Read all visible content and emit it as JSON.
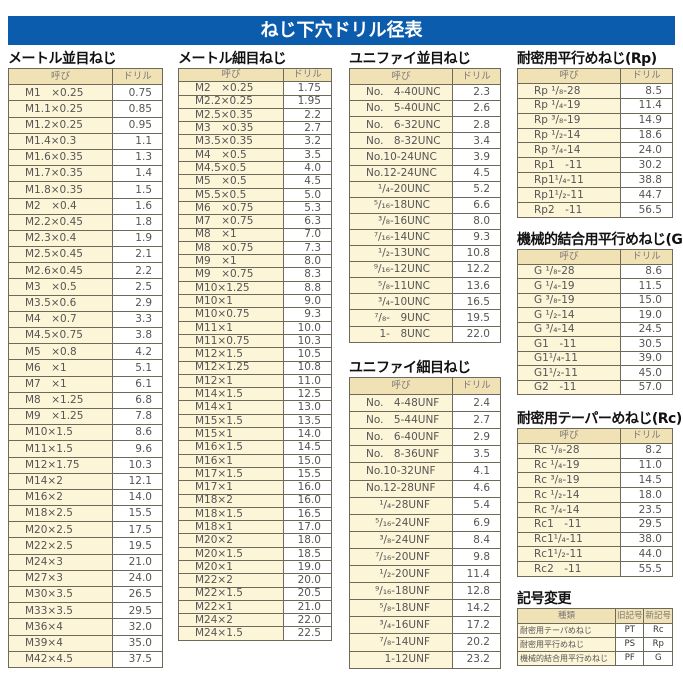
{
  "title": "ねじ下穴ドリル径表",
  "col_name": "呼び",
  "col_drill": "ドリル",
  "sections": [
    {
      "id": "metric-coarse",
      "heading": "メートル並目ねじ",
      "rows": [
        [
          "M1　×0.25",
          "0.75"
        ],
        [
          "M1.1×0.25",
          "0.85"
        ],
        [
          "M1.2×0.25",
          "0.95"
        ],
        [
          "M1.4×0.3",
          "1.1"
        ],
        [
          "M1.6×0.35",
          "1.3"
        ],
        [
          "M1.7×0.35",
          "1.4"
        ],
        [
          "M1.8×0.35",
          "1.5"
        ],
        [
          "M2　×0.4",
          "1.6"
        ],
        [
          "M2.2×0.45",
          "1.8"
        ],
        [
          "M2.3×0.4",
          "1.9"
        ],
        [
          "M2.5×0.45",
          "2.1"
        ],
        [
          "M2.6×0.45",
          "2.2"
        ],
        [
          "M3　×0.5",
          "2.5"
        ],
        [
          "M3.5×0.6",
          "2.9"
        ],
        [
          "M4　×0.7",
          "3.3"
        ],
        [
          "M4.5×0.75",
          "3.8"
        ],
        [
          "M5　×0.8",
          "4.2"
        ],
        [
          "M6　×1",
          "5.1"
        ],
        [
          "M7　×1",
          "6.1"
        ],
        [
          "M8　×1.25",
          "6.8"
        ],
        [
          "M9　×1.25",
          "7.8"
        ],
        [
          "M10×1.5",
          "8.6"
        ],
        [
          "M11×1.5",
          "9.6"
        ],
        [
          "M12×1.75",
          "10.3"
        ],
        [
          "M14×2",
          "12.1"
        ],
        [
          "M16×2",
          "14.0"
        ],
        [
          "M18×2.5",
          "15.5"
        ],
        [
          "M20×2.5",
          "17.5"
        ],
        [
          "M22×2.5",
          "19.5"
        ],
        [
          "M24×3",
          "21.0"
        ],
        [
          "M27×3",
          "24.0"
        ],
        [
          "M30×3.5",
          "26.5"
        ],
        [
          "M33×3.5",
          "29.5"
        ],
        [
          "M36×4",
          "32.0"
        ],
        [
          "M39×4",
          "35.0"
        ],
        [
          "M42×4.5",
          "37.5"
        ]
      ]
    },
    {
      "id": "metric-fine",
      "heading": "メートル細目ねじ",
      "rows": [
        [
          "M2　×0.25",
          "1.75"
        ],
        [
          "M2.2×0.25",
          "1.95"
        ],
        [
          "M2.5×0.35",
          "2.2"
        ],
        [
          "M3　×0.35",
          "2.7"
        ],
        [
          "M3.5×0.35",
          "3.2"
        ],
        [
          "M4　×0.5",
          "3.5"
        ],
        [
          "M4.5×0.5",
          "4.0"
        ],
        [
          "M5　×0.5",
          "4.5"
        ],
        [
          "M5.5×0.5",
          "5.0"
        ],
        [
          "M6　×0.75",
          "5.3"
        ],
        [
          "M7　×0.75",
          "6.3"
        ],
        [
          "M8　×1",
          "7.0"
        ],
        [
          "M8　×0.75",
          "7.3"
        ],
        [
          "M9　×1",
          "8.0"
        ],
        [
          "M9　×0.75",
          "8.3"
        ],
        [
          "M10×1.25",
          "8.8"
        ],
        [
          "M10×1",
          "9.0"
        ],
        [
          "M10×0.75",
          "9.3"
        ],
        [
          "M11×1",
          "10.0"
        ],
        [
          "M11×0.75",
          "10.3"
        ],
        [
          "M12×1.5",
          "10.5"
        ],
        [
          "M12×1.25",
          "10.8"
        ],
        [
          "M12×1",
          "11.0"
        ],
        [
          "M14×1.5",
          "12.5"
        ],
        [
          "M14×1",
          "13.0"
        ],
        [
          "M15×1.5",
          "13.5"
        ],
        [
          "M15×1",
          "14.0"
        ],
        [
          "M16×1.5",
          "14.5"
        ],
        [
          "M16×1",
          "15.0"
        ],
        [
          "M17×1.5",
          "15.5"
        ],
        [
          "M17×1",
          "16.0"
        ],
        [
          "M18×2",
          "16.0"
        ],
        [
          "M18×1.5",
          "16.5"
        ],
        [
          "M18×1",
          "17.0"
        ],
        [
          "M20×2",
          "18.0"
        ],
        [
          "M20×1.5",
          "18.5"
        ],
        [
          "M20×1",
          "19.0"
        ],
        [
          "M22×2",
          "20.0"
        ],
        [
          "M22×1.5",
          "20.5"
        ],
        [
          "M22×1",
          "21.0"
        ],
        [
          "M24×2",
          "22.0"
        ],
        [
          "M24×1.5",
          "22.5"
        ]
      ]
    },
    {
      "id": "unc",
      "heading": "ユニファイ並目ねじ",
      "rows": [
        [
          "No.　4-40UNC",
          "2.3"
        ],
        [
          "No.　5-40UNC",
          "2.6"
        ],
        [
          "No.　6-32UNC",
          "2.8"
        ],
        [
          "No.　8-32UNC",
          "3.4"
        ],
        [
          "No.10-24UNC",
          "3.9"
        ],
        [
          "No.12-24UNC",
          "4.5"
        ],
        [
          "¹/₄-20UNC",
          "5.2"
        ],
        [
          "⁵/₁₆-18UNC",
          "6.6"
        ],
        [
          "³/₈-16UNC",
          "8.0"
        ],
        [
          "⁷/₁₆-14UNC",
          "9.3"
        ],
        [
          "¹/₂-13UNC",
          "10.8"
        ],
        [
          "⁹/₁₆-12UNC",
          "12.2"
        ],
        [
          "⁵/₈-11UNC",
          "13.6"
        ],
        [
          "³/₄-10UNC",
          "16.5"
        ],
        [
          "⁷/₈-　9UNC",
          "19.5"
        ],
        [
          "1-　8UNC",
          "22.0"
        ]
      ]
    },
    {
      "id": "unf",
      "heading": "ユニファイ細目ねじ",
      "rows": [
        [
          "No.　4-48UNF",
          "2.4"
        ],
        [
          "No.　5-44UNF",
          "2.7"
        ],
        [
          "No.　6-40UNF",
          "2.9"
        ],
        [
          "No.　8-36UNF",
          "3.5"
        ],
        [
          "No.10-32UNF",
          "4.1"
        ],
        [
          "No.12-28UNF",
          "4.6"
        ],
        [
          "¹/₄-28UNF",
          "5.4"
        ],
        [
          "⁵/₁₆-24UNF",
          "6.9"
        ],
        [
          "³/₈-24UNF",
          "8.4"
        ],
        [
          "⁷/₁₆-20UNF",
          "9.8"
        ],
        [
          "¹/₂-20UNF",
          "11.4"
        ],
        [
          "⁹/₁₆-18UNF",
          "12.8"
        ],
        [
          "⁵/₈-18UNF",
          "14.2"
        ],
        [
          "³/₄-16UNF",
          "17.2"
        ],
        [
          "⁷/₈-14UNF",
          "20.2"
        ],
        [
          "1-12UNF",
          "23.2"
        ]
      ]
    },
    {
      "id": "rp",
      "heading": "耐密用平行めねじ(Rp)",
      "rows": [
        [
          "Rp ¹/₈-28",
          "8.5"
        ],
        [
          "Rp ¹/₄-19",
          "11.4"
        ],
        [
          "Rp ³/₈-19",
          "14.9"
        ],
        [
          "Rp ¹/₂-14",
          "18.6"
        ],
        [
          "Rp ³/₄-14",
          "24.0"
        ],
        [
          "Rp1　-11",
          "30.2"
        ],
        [
          "Rp1¹/₄-11",
          "38.8"
        ],
        [
          "Rp1¹/₂-11",
          "44.7"
        ],
        [
          "Rp2　-11",
          "56.5"
        ]
      ]
    },
    {
      "id": "g",
      "heading": "機械的結合用平行めねじ(G)",
      "rows": [
        [
          "G ¹/₈-28",
          "8.6"
        ],
        [
          "G ¹/₄-19",
          "11.5"
        ],
        [
          "G ³/₈-19",
          "15.0"
        ],
        [
          "G ¹/₂-14",
          "19.0"
        ],
        [
          "G ³/₄-14",
          "24.5"
        ],
        [
          "G1　-11",
          "30.5"
        ],
        [
          "G1¹/₄-11",
          "39.0"
        ],
        [
          "G1¹/₂-11",
          "45.0"
        ],
        [
          "G2　-11",
          "57.0"
        ]
      ]
    },
    {
      "id": "rc",
      "heading": "耐密用テーパーめねじ(Rc)",
      "rows": [
        [
          "Rc ¹/₈-28",
          "8.2"
        ],
        [
          "Rc ¹/₄-19",
          "11.0"
        ],
        [
          "Rc ³/₈-19",
          "14.5"
        ],
        [
          "Rc ¹/₂-14",
          "18.0"
        ],
        [
          "Rc ³/₄-14",
          "23.5"
        ],
        [
          "Rc1　-11",
          "29.5"
        ],
        [
          "Rc1¹/₄-11",
          "38.0"
        ],
        [
          "Rc1¹/₂-11",
          "44.0"
        ],
        [
          "Rc2　-11",
          "55.5"
        ]
      ]
    }
  ],
  "symbol_change": {
    "heading": "記号変更",
    "headers": [
      "種類",
      "旧記号",
      "新記号"
    ],
    "rows": [
      [
        "耐密用テーパめねじ",
        "PT",
        "Rc"
      ],
      [
        "耐密用平行めねじ",
        "PS",
        "Rp"
      ],
      [
        "機械的結合用平行めねじ",
        "PF",
        "G"
      ]
    ]
  }
}
